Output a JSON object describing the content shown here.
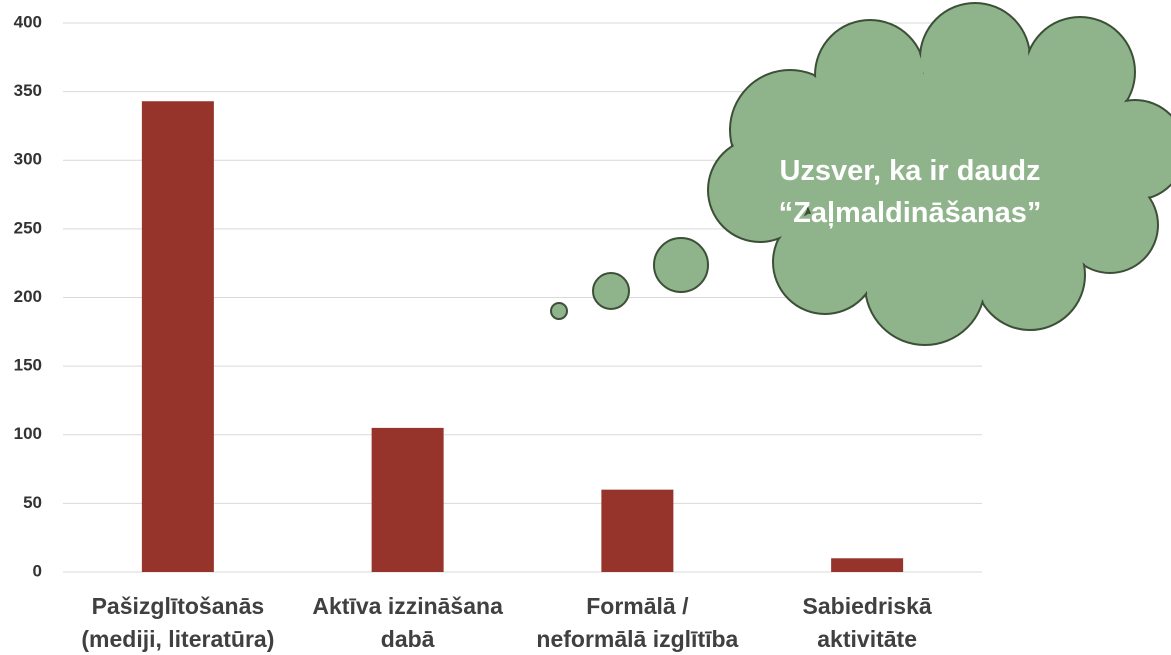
{
  "chart_data": {
    "type": "bar",
    "categories": [
      "Pašizglītošanās\n(mediji, literatūra)",
      "Aktīva izzināšana\ndabā",
      "Formālā /\nneformālā izglītība",
      "Sabiedriskā\naktivitāte"
    ],
    "values": [
      343,
      105,
      60,
      10
    ],
    "color": "#96342b",
    "ylim": [
      0,
      400
    ],
    "yticks": [
      0,
      50,
      100,
      150,
      200,
      250,
      300,
      350,
      400
    ],
    "grid": true,
    "annotation": "Uzsver, ka ir daudz\n“Zaļmaldināšanas”"
  }
}
